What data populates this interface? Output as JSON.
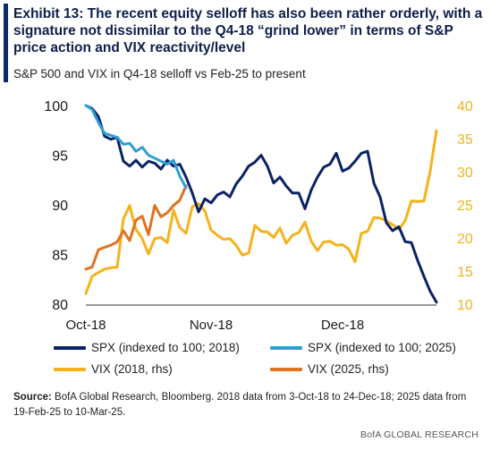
{
  "exhibit": {
    "title": "Exhibit 13: The recent equity selloff has also been rather orderly, with a signature not dissimilar to the Q4-18 “grind lower” in terms of S&P price action and VIX reactivity/level",
    "subtitle": "S&P 500 and VIX in Q4-18 selloff vs Feb-25 to present",
    "source_label": "Source:",
    "source_text": "BofA Global Research, Bloomberg. 2018 data from 3-Oct-18 to 24-Dec-18; 2025 data from 19-Feb-25 to 10-Mar-25.",
    "footer": "BofA GLOBAL RESEARCH"
  },
  "colors": {
    "accent": "#0b2a6b",
    "spx_2018": "#0b2265",
    "spx_2025": "#2e9fd6",
    "vix_2018": "#f5b21b",
    "vix_2025": "#e0731f",
    "rhs_tick": "#f0b41e"
  },
  "legend": [
    {
      "label": "SPX (indexed to 100; 2018)",
      "color": "#0b2265"
    },
    {
      "label": "SPX (indexed to 100; 2025)",
      "color": "#2e9fd6"
    },
    {
      "label": "VIX (2018, rhs)",
      "color": "#f5b21b"
    },
    {
      "label": "VIX (2025, rhs)",
      "color": "#e0731f"
    }
  ],
  "chart_data": {
    "type": "line",
    "x_unit": "trading day index (0 = 3-Oct-18)",
    "x_tick_labels": [
      {
        "label": "Oct-18",
        "x": 0
      },
      {
        "label": "Nov-18",
        "x": 20
      },
      {
        "label": "Dec-18",
        "x": 41
      }
    ],
    "x_range": [
      0,
      56
    ],
    "y_left": {
      "ylim": [
        80,
        100
      ],
      "ticks": [
        80,
        85,
        90,
        95,
        100
      ]
    },
    "y_right": {
      "ylim": [
        10,
        40
      ],
      "ticks": [
        10,
        15,
        20,
        25,
        30,
        35,
        40
      ]
    },
    "grid": false,
    "series": [
      {
        "name": "SPX (indexed to 100; 2018)",
        "axis": "left",
        "color": "#0b2265",
        "values": [
          100,
          99.7,
          98.9,
          96.9,
          96.6,
          96.8,
          94.4,
          93.9,
          94.5,
          93.8,
          94.4,
          94.2,
          93.6,
          94.5,
          93.9,
          94.1,
          92.8,
          91.2,
          89.3,
          90.6,
          90.2,
          91.0,
          91.3,
          90.8,
          92.1,
          92.9,
          93.9,
          94.3,
          95.0,
          93.9,
          92.2,
          92.8,
          91.9,
          91.2,
          91.2,
          89.6,
          91.5,
          92.8,
          93.8,
          94.1,
          95.2,
          93.4,
          93.7,
          94.4,
          95.2,
          95.4,
          92.2,
          90.8,
          88.2,
          87.4,
          87.8,
          86.3,
          86.2,
          84.4,
          82.8,
          81.3,
          80.2
        ]
      },
      {
        "name": "SPX (indexed to 100; 2025)",
        "axis": "left",
        "color": "#2e9fd6",
        "values": [
          100,
          99.6,
          98.3,
          97.2,
          97.0,
          96.8,
          96.1,
          96.2,
          95.4,
          95.8,
          95.0,
          94.7,
          94.4,
          94.1,
          94.5,
          92.9,
          91.7
        ]
      },
      {
        "name": "VIX (2018, rhs)",
        "axis": "right",
        "color": "#f5b21b",
        "values": [
          11.6,
          14.2,
          14.8,
          15.3,
          15.5,
          15.6,
          22.9,
          24.9,
          21.3,
          19.9,
          17.6,
          19.9,
          20.1,
          19.3,
          24.2,
          21.6,
          20.7,
          24.7,
          25.2,
          24.1,
          21.2,
          20.4,
          19.8,
          19.9,
          18.9,
          17.4,
          17.7,
          21.9,
          21.0,
          20.9,
          20.1,
          21.5,
          19.2,
          20.4,
          20.8,
          22.4,
          19.5,
          18.1,
          19.4,
          19.5,
          18.9,
          19.0,
          18.3,
          16.4,
          20.7,
          21.0,
          23.1,
          23.0,
          22.6,
          22.0,
          21.3,
          22.6,
          25.6,
          25.5,
          25.6,
          30.1,
          36.2
        ]
      },
      {
        "name": "VIX (2025, rhs)",
        "axis": "right",
        "color": "#e0731f",
        "values": [
          15.3,
          15.6,
          18.2,
          18.6,
          18.9,
          19.4,
          21.1,
          19.6,
          22.7,
          23.3,
          20.5,
          24.9,
          23.2,
          23.8,
          24.9,
          25.7,
          27.9
        ]
      }
    ]
  }
}
